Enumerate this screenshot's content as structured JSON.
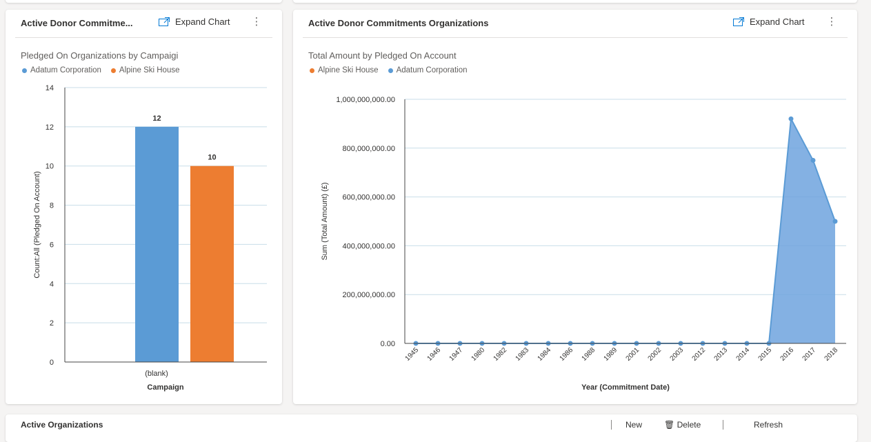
{
  "left_card": {
    "title": "Active Donor Commitme...",
    "expand_label": "Expand Chart",
    "more_label": "⋮"
  },
  "right_card": {
    "title": "Active Donor Commitments Organizations",
    "expand_label": "Expand Chart",
    "more_label": "⋮"
  },
  "bottom_card": {
    "title": "Active Organizations",
    "new_label": "New",
    "delete_label": "Delete",
    "refresh_label": "Refresh"
  },
  "colors": {
    "blue": "#5b9bd5",
    "orange": "#ed7d31",
    "area_fill": "#6fa3de",
    "grid": "#c8dde8"
  },
  "chart_data": [
    {
      "type": "bar",
      "title": "Pledged On Organizations by Campaign",
      "title_display": "Pledged On Organizations by Campaigi",
      "xlabel": "Campaign",
      "ylabel": "Count:All (Pledged On Account)",
      "categories": [
        "(blank)"
      ],
      "series": [
        {
          "name": "Adatum Corporation",
          "color": "#5b9bd5",
          "values": [
            12
          ]
        },
        {
          "name": "Alpine Ski House",
          "color": "#ed7d31",
          "values": [
            10
          ]
        }
      ],
      "ylim": [
        0,
        14
      ],
      "yticks": [
        "0",
        "2",
        "4",
        "6",
        "8",
        "10",
        "12",
        "14"
      ],
      "legend": [
        "Adatum Corporation",
        "Alpine Ski House"
      ],
      "grid": true
    },
    {
      "type": "area",
      "title": "Total Amount by Pledged On Account",
      "xlabel": "Year (Commitment Date)",
      "ylabel": "Sum (Total Amount) (£)",
      "x": [
        "1945",
        "1946",
        "1947",
        "1980",
        "1982",
        "1983",
        "1984",
        "1986",
        "1988",
        "1989",
        "2001",
        "2002",
        "2003",
        "2012",
        "2013",
        "2014",
        "2015",
        "2016",
        "2017",
        "2018"
      ],
      "series": [
        {
          "name": "Alpine Ski House",
          "color": "#ed7d31",
          "values": [
            0,
            0,
            0,
            0,
            0,
            0,
            0,
            0,
            0,
            0,
            0,
            0,
            0,
            0,
            0,
            0,
            0,
            0,
            0,
            0
          ]
        },
        {
          "name": "Adatum Corporation",
          "color": "#5b9bd5",
          "values": [
            0,
            0,
            0,
            0,
            0,
            0,
            0,
            0,
            0,
            0,
            0,
            0,
            0,
            0,
            0,
            0,
            0,
            920000000,
            750000000,
            500000000
          ]
        }
      ],
      "ylim": [
        0,
        1000000000
      ],
      "yticks": [
        "0.00",
        "200,000,000.00",
        "400,000,000.00",
        "600,000,000.00",
        "800,000,000.00",
        "1,000,000,000.00"
      ],
      "legend": [
        "Alpine Ski House",
        "Adatum Corporation"
      ],
      "grid": true
    }
  ]
}
